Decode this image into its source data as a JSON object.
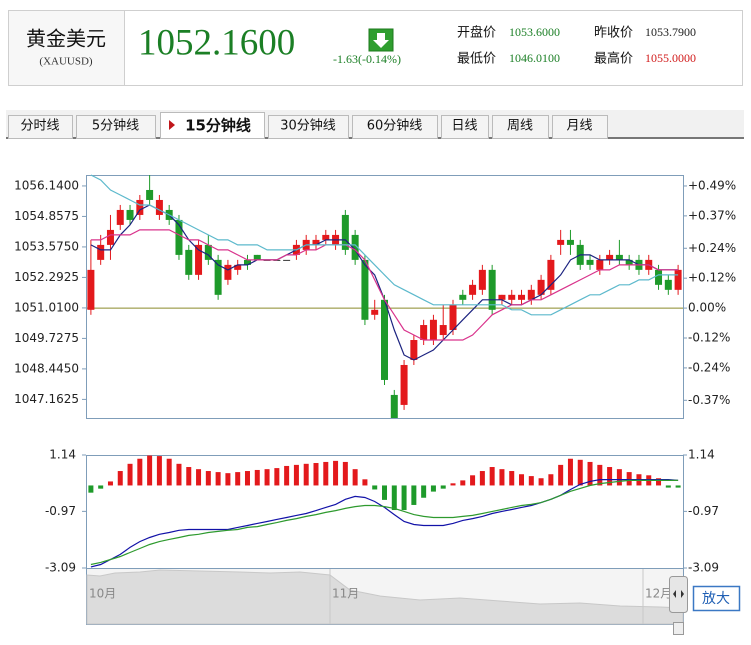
{
  "header": {
    "name": "黄金美元",
    "code": "(XAUUSD)",
    "price": "1052.1600",
    "change": "-1.63(-0.14%)",
    "stats": [
      {
        "label": "开盘价",
        "value": "1053.6000"
      },
      {
        "label": "昨收价",
        "value": "1053.7900"
      },
      {
        "label": "最低价",
        "value": "1046.0100"
      },
      {
        "label": "最高价",
        "value": "1055.0000"
      }
    ]
  },
  "tabs": [
    "分时线",
    "5分钟线",
    "15分钟线",
    "30分钟线",
    "60分钟线",
    "日线",
    "周线",
    "月线"
  ],
  "active_tab": 2,
  "chart_data": [
    {
      "type": "candlestick",
      "categories": [
        null,
        null,
        null,
        null,
        null,
        null,
        null,
        null,
        null,
        null,
        null,
        null,
        null,
        null,
        null,
        null,
        null,
        null,
        null,
        null,
        null,
        null,
        null,
        null,
        null,
        null,
        null,
        null,
        null,
        null,
        null,
        null,
        null,
        null,
        null,
        null,
        null,
        null,
        null,
        null,
        null,
        null,
        null,
        null,
        null,
        null,
        null,
        null,
        null,
        null,
        null,
        null,
        null,
        null,
        null,
        null,
        null,
        null,
        null,
        null,
        null
      ],
      "open": [
        1050.93,
        1053.03,
        1053.66,
        1054.5,
        1055.13,
        1054.92,
        1055.97,
        1054.92,
        1055.13,
        1054.71,
        1053.45,
        1052.4,
        1053.66,
        1053.03,
        1052.19,
        1052.61,
        1053.03,
        1053.24,
        1053.03,
        1053.03,
        1053.03,
        1053.24,
        1053.45,
        1053.66,
        1053.87,
        1053.66,
        1054.92,
        1054.08,
        1053.03,
        1050.72,
        1051.35,
        1047.35,
        1046.93,
        1048.82,
        1049.66,
        1049.66,
        1049.87,
        1050.08,
        1051.56,
        1051.56,
        1051.77,
        1052.61,
        1051.35,
        1051.35,
        1051.35,
        1051.35,
        1051.56,
        1051.77,
        1053.66,
        1053.87,
        1053.66,
        1053.03,
        1052.61,
        1053.03,
        1053.24,
        1053.03,
        1053.03,
        1052.61,
        1052.61,
        1052.19,
        1051.77
      ],
      "high": [
        1053.87,
        1054.08,
        1054.92,
        1055.34,
        1055.34,
        1055.76,
        1056.6,
        1055.76,
        1055.34,
        1054.92,
        1053.66,
        1053.87,
        1054.08,
        1053.24,
        1053.03,
        1053.03,
        1053.24,
        1053.24,
        1053.03,
        1053.03,
        1053.03,
        1053.87,
        1054.08,
        1054.08,
        1054.29,
        1054.29,
        1055.13,
        1054.29,
        1053.24,
        1051.35,
        1051.56,
        1047.56,
        1048.82,
        1049.87,
        1050.51,
        1050.72,
        1051.14,
        1051.35,
        1051.77,
        1052.19,
        1052.82,
        1052.82,
        1051.56,
        1051.77,
        1051.77,
        1051.98,
        1052.4,
        1053.24,
        1054.29,
        1054.29,
        1053.87,
        1053.24,
        1053.24,
        1053.45,
        1053.87,
        1053.24,
        1053.24,
        1053.24,
        1052.82,
        1052.4,
        1052.82
      ],
      "low": [
        1050.72,
        1052.82,
        1053.03,
        1054.29,
        1054.5,
        1054.71,
        1055.34,
        1054.71,
        1054.5,
        1053.03,
        1052.19,
        1052.19,
        1052.82,
        1051.35,
        1051.98,
        1052.4,
        1052.61,
        1053.03,
        1053.03,
        1053.03,
        1053.03,
        1053.03,
        1053.24,
        1053.45,
        1053.66,
        1053.45,
        1053.24,
        1052.82,
        1050.29,
        1050.51,
        1047.77,
        1046.38,
        1046.72,
        1048.61,
        1049.45,
        1049.45,
        1049.66,
        1049.87,
        1051.14,
        1051.35,
        1051.56,
        1050.72,
        1051.14,
        1051.14,
        1051.14,
        1051.14,
        1051.35,
        1051.56,
        1053.24,
        1053.24,
        1052.61,
        1052.61,
        1052.4,
        1052.82,
        1052.82,
        1052.61,
        1052.4,
        1052.4,
        1051.77,
        1051.56,
        1051.56
      ],
      "close": [
        1052.61,
        1053.66,
        1054.29,
        1055.13,
        1054.71,
        1055.55,
        1055.55,
        1055.55,
        1054.71,
        1053.24,
        1052.4,
        1053.66,
        1053.03,
        1051.56,
        1052.82,
        1052.82,
        1052.82,
        1053.03,
        1053.03,
        1053.03,
        1053.03,
        1053.66,
        1053.87,
        1053.87,
        1054.08,
        1054.08,
        1053.45,
        1053.03,
        1050.51,
        1050.93,
        1047.98,
        1046.38,
        1048.61,
        1049.66,
        1050.29,
        1050.51,
        1050.29,
        1051.14,
        1051.35,
        1051.98,
        1052.61,
        1050.93,
        1051.56,
        1051.56,
        1051.56,
        1051.77,
        1052.19,
        1053.03,
        1053.87,
        1053.66,
        1052.82,
        1052.82,
        1053.03,
        1053.24,
        1053.03,
        1052.82,
        1052.61,
        1053.03,
        1051.98,
        1051.77,
        1052.61
      ],
      "up_color": "#e3191c",
      "down_color": "#1e9a2a",
      "flat_color": "#333333",
      "lines": [
        {
          "color": "#1c2380",
          "values": [
            1053.66,
            1053.45,
            1053.45,
            1054.08,
            1054.5,
            1055.13,
            1055.34,
            1055.13,
            1054.92,
            1054.5,
            1053.87,
            1053.45,
            1053.24,
            1052.82,
            1052.61,
            1052.82,
            1052.82,
            1053.03,
            1053.03,
            1053.03,
            1053.24,
            1053.45,
            1053.66,
            1053.66,
            1053.87,
            1053.87,
            1053.87,
            1053.45,
            1052.82,
            1052.4,
            1051.35,
            1050.08,
            1049.03,
            1048.82,
            1049.03,
            1049.24,
            1049.66,
            1050.08,
            1050.51,
            1050.93,
            1051.35,
            1051.35,
            1051.35,
            1051.14,
            1051.14,
            1051.35,
            1051.56,
            1051.98,
            1052.4,
            1053.03,
            1053.24,
            1053.24,
            1053.03,
            1053.03,
            1053.03,
            1053.03,
            1052.82,
            1052.82,
            1052.61,
            1052.61,
            1052.61
          ]
        },
        {
          "color": "#d9338c",
          "values": [
            1053.87,
            1053.87,
            1054.08,
            1054.08,
            1054.08,
            1054.29,
            1054.29,
            1054.29,
            1054.29,
            1054.08,
            1053.87,
            1053.87,
            1053.66,
            1053.45,
            1053.45,
            1053.24,
            1053.03,
            1053.03,
            1053.03,
            1053.03,
            1053.24,
            1053.24,
            1053.45,
            1053.45,
            1053.66,
            1053.66,
            1053.66,
            1053.45,
            1053.03,
            1052.19,
            1051.35,
            1050.72,
            1050.08,
            1049.87,
            1049.66,
            1049.66,
            1049.66,
            1049.66,
            1049.66,
            1049.87,
            1050.29,
            1050.72,
            1050.93,
            1051.14,
            1051.14,
            1051.35,
            1051.35,
            1051.56,
            1051.77,
            1051.98,
            1052.19,
            1052.4,
            1052.61,
            1052.61,
            1052.82,
            1052.82,
            1052.82,
            1052.82,
            1052.61,
            1052.61,
            1052.61
          ]
        },
        {
          "color": "#5cb9cc",
          "values": [
            1056.6,
            1056.39,
            1055.97,
            1055.76,
            1055.55,
            1055.34,
            1055.34,
            1055.13,
            1054.92,
            1054.71,
            1054.5,
            1054.29,
            1054.08,
            1053.87,
            1053.87,
            1053.66,
            1053.66,
            1053.66,
            1053.45,
            1053.45,
            1053.45,
            1053.45,
            1053.66,
            1053.66,
            1053.66,
            1053.66,
            1053.66,
            1053.66,
            1053.24,
            1052.82,
            1052.4,
            1051.98,
            1051.77,
            1051.56,
            1051.35,
            1051.14,
            1051.14,
            1051.14,
            1051.14,
            1051.14,
            1051.14,
            1051.14,
            1051.14,
            1050.93,
            1050.93,
            1050.72,
            1050.72,
            1050.72,
            1050.93,
            1051.14,
            1051.35,
            1051.56,
            1051.56,
            1051.77,
            1051.98,
            1051.98,
            1052.19,
            1052.19,
            1052.4,
            1052.4,
            1052.4
          ]
        }
      ],
      "ylim": [
        1046.38,
        1056.6
      ],
      "yticks": [
        {
          "value": 1056.14,
          "label": "1056.1400"
        },
        {
          "value": 1054.8575,
          "label": "1054.8575"
        },
        {
          "value": 1053.575,
          "label": "1053.5750"
        },
        {
          "value": 1052.2925,
          "label": "1052.2925"
        },
        {
          "value": 1051.01,
          "label": "1051.0100"
        },
        {
          "value": 1049.7275,
          "label": "1049.7275"
        },
        {
          "value": 1048.445,
          "label": "1048.4450"
        },
        {
          "value": 1047.1625,
          "label": "1047.1625"
        }
      ],
      "y2lim": [
        -0.441,
        0.534
      ],
      "y2ticks": [
        {
          "value": 0.49,
          "label": "+0.49%"
        },
        {
          "value": 0.37,
          "label": "+0.37%"
        },
        {
          "value": 0.24,
          "label": "+0.24%"
        },
        {
          "value": 0.12,
          "label": "+0.12%"
        },
        {
          "value": 0,
          "label": "0.00%"
        },
        {
          "value": -0.12,
          "label": "-0.12%"
        },
        {
          "value": -0.24,
          "label": "-0.24%"
        },
        {
          "value": -0.37,
          "label": "-0.37%"
        }
      ],
      "baseline_color": "#8a8a2a"
    },
    {
      "type": "macd",
      "categories": [
        null,
        null,
        null,
        null,
        null,
        null,
        null,
        null,
        null,
        null,
        null,
        null,
        null,
        null,
        null,
        null,
        null,
        null,
        null,
        null,
        null,
        null,
        null,
        null,
        null,
        null,
        null,
        null,
        null,
        null,
        null,
        null,
        null,
        null,
        null,
        null,
        null,
        null,
        null,
        null,
        null,
        null,
        null,
        null,
        null,
        null,
        null,
        null,
        null,
        null,
        null,
        null,
        null,
        null,
        null,
        null,
        null,
        null,
        null,
        null,
        null
      ],
      "bars": [
        -0.27,
        -0.12,
        0.15,
        0.54,
        0.81,
        1.0,
        1.12,
        1.1,
        1.0,
        0.81,
        0.69,
        0.61,
        0.54,
        0.5,
        0.46,
        0.5,
        0.54,
        0.58,
        0.61,
        0.65,
        0.73,
        0.77,
        0.81,
        0.84,
        0.88,
        0.92,
        0.88,
        0.61,
        0.23,
        -0.15,
        -0.54,
        -0.92,
        -0.92,
        -0.73,
        -0.46,
        -0.23,
        -0.12,
        0.08,
        0.19,
        0.38,
        0.54,
        0.69,
        0.61,
        0.54,
        0.42,
        0.35,
        0.27,
        0.42,
        0.77,
        1.0,
        0.96,
        0.88,
        0.77,
        0.69,
        0.61,
        0.5,
        0.42,
        0.38,
        0.27,
        -0.08,
        -0.08
      ],
      "up_color": "#e3191c",
      "down_color": "#1e9a2a",
      "lines": [
        {
          "color": "#1212a8",
          "values": [
            -3.05,
            -2.96,
            -2.77,
            -2.58,
            -2.32,
            -2.1,
            -1.95,
            -1.83,
            -1.76,
            -1.68,
            -1.65,
            -1.65,
            -1.65,
            -1.65,
            -1.65,
            -1.57,
            -1.5,
            -1.42,
            -1.35,
            -1.27,
            -1.2,
            -1.12,
            -1.05,
            -0.94,
            -0.82,
            -0.71,
            -0.52,
            -0.41,
            -0.45,
            -0.6,
            -0.82,
            -1.09,
            -1.35,
            -1.46,
            -1.5,
            -1.5,
            -1.5,
            -1.42,
            -1.31,
            -1.24,
            -1.16,
            -1.05,
            -0.97,
            -0.9,
            -0.82,
            -0.75,
            -0.64,
            -0.52,
            -0.37,
            -0.15,
            0.04,
            0.15,
            0.22,
            0.22,
            0.22,
            0.22,
            0.22,
            0.22,
            0.22,
            0.22,
            0.19
          ]
        },
        {
          "color": "#2e9a2e",
          "values": [
            -2.96,
            -2.88,
            -2.77,
            -2.66,
            -2.51,
            -2.36,
            -2.21,
            -2.1,
            -2.02,
            -1.95,
            -1.87,
            -1.83,
            -1.76,
            -1.72,
            -1.68,
            -1.65,
            -1.57,
            -1.54,
            -1.46,
            -1.39,
            -1.31,
            -1.24,
            -1.16,
            -1.09,
            -1.01,
            -0.94,
            -0.86,
            -0.79,
            -0.75,
            -0.75,
            -0.79,
            -0.86,
            -0.97,
            -1.09,
            -1.16,
            -1.2,
            -1.2,
            -1.2,
            -1.16,
            -1.12,
            -1.05,
            -0.97,
            -0.9,
            -0.82,
            -0.75,
            -0.71,
            -0.64,
            -0.52,
            -0.37,
            -0.22,
            -0.11,
            0.0,
            0.07,
            0.11,
            0.15,
            0.19,
            0.19,
            0.19,
            0.19,
            0.19,
            0.19
          ]
        }
      ],
      "ylim": [
        -3.09,
        1.14
      ],
      "yticks": [
        1.14,
        -0.97,
        -3.09
      ]
    }
  ],
  "navigator": {
    "labels": [
      "10月",
      "11月",
      "12月"
    ],
    "button": "放大"
  }
}
